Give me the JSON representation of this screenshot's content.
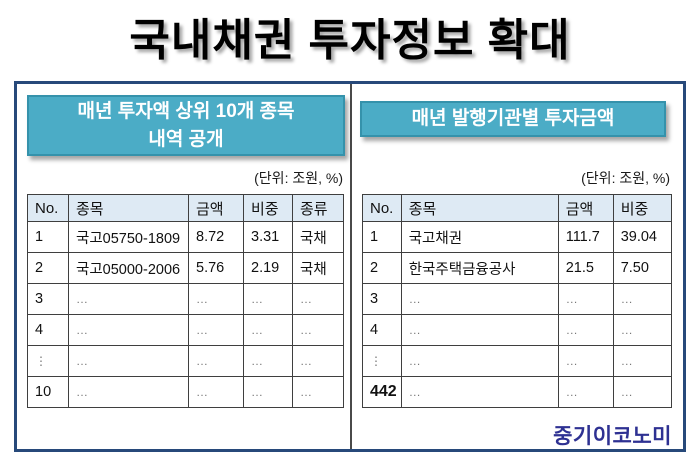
{
  "title": "국내채권 투자정보 확대",
  "left_panel": {
    "header_line1": "매년 투자액 상위 10개 종목",
    "header_line2": "내역 공개",
    "unit_label": "(단위: 조원, %)",
    "table": {
      "columns": [
        "No.",
        "종목",
        "금액",
        "비중",
        "종류"
      ],
      "rows": [
        [
          "1",
          "국고05750-1809",
          "8.72",
          "3.31",
          "국채"
        ],
        [
          "2",
          "국고05000-2006",
          "5.76",
          "2.19",
          "국채"
        ],
        [
          "3",
          "…",
          "…",
          "…",
          "…"
        ],
        [
          "4",
          "…",
          "…",
          "…",
          "…"
        ],
        [
          "⋮",
          "…",
          "…",
          "…",
          "…"
        ],
        [
          "10",
          "…",
          "…",
          "…",
          "…"
        ]
      ]
    }
  },
  "right_panel": {
    "header": "매년 발행기관별 투자금액",
    "unit_label": "(단위: 조원, %)",
    "table": {
      "columns": [
        "No.",
        "종목",
        "금액",
        "비중"
      ],
      "rows": [
        [
          "1",
          "국고채권",
          "111.7",
          "39.04"
        ],
        [
          "2",
          "한국주택금융공사",
          "21.5",
          "7.50"
        ],
        [
          "3",
          "…",
          "…",
          "…"
        ],
        [
          "4",
          "…",
          "…",
          "…"
        ],
        [
          "⋮",
          "…",
          "…",
          "…"
        ],
        [
          "442",
          "…",
          "…",
          "…"
        ]
      ]
    }
  },
  "footer": {
    "logo_text": "중기이코노미"
  },
  "colors": {
    "header_teal": "#4BACC6",
    "header_teal_border": "#3592AB",
    "outer_border_navy": "#27497A",
    "table_header_bg": "#DEEAF4",
    "table_border": "#3F3F3F",
    "logo_blue": "#2E3192"
  }
}
